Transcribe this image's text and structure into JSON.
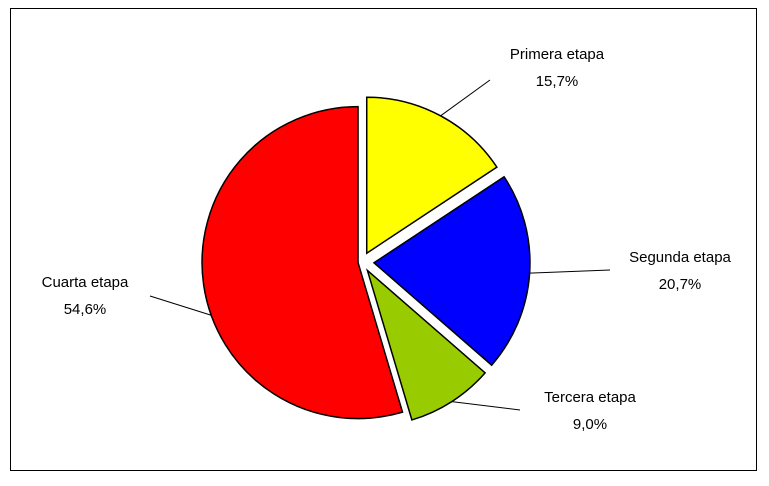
{
  "chart_data": {
    "type": "pie",
    "categories": [
      "Primera etapa",
      "Segunda etapa",
      "Tercera etapa",
      "Cuarta etapa"
    ],
    "values": [
      15.7,
      20.7,
      9.0,
      54.6
    ],
    "value_labels": [
      "15,7%",
      "20,7%",
      "9,0%",
      "54,6%"
    ],
    "colors": [
      "#ffff00",
      "#0000ff",
      "#99cc00",
      "#ff0000"
    ]
  }
}
